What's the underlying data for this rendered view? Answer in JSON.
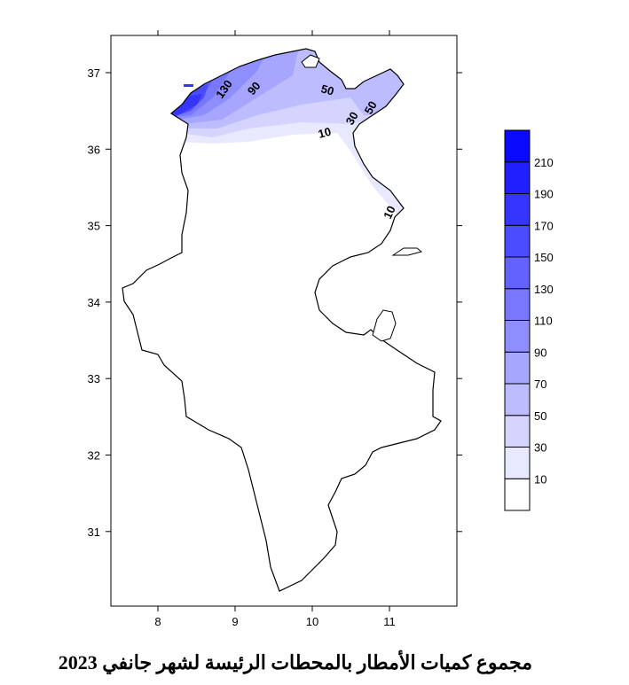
{
  "title": "مجموع كميات الأمطار بالمحطات الرئيسة لشهر جانفي 2023",
  "chart_data": {
    "type": "contour map",
    "region": "Tunisia",
    "xlim": [
      7.4,
      11.9
    ],
    "ylim": [
      30.05,
      37.5
    ],
    "xticks": [
      8,
      9,
      10,
      11
    ],
    "yticks": [
      31,
      32,
      33,
      34,
      35,
      36,
      37
    ],
    "legend": {
      "placement": "right",
      "levels": [
        10,
        30,
        50,
        70,
        90,
        110,
        130,
        150,
        170,
        190,
        210
      ],
      "colors": [
        "#ffffff",
        "#e8e8ff",
        "#d4d4ff",
        "#bcbcff",
        "#a6a6ff",
        "#8e8eff",
        "#7878ff",
        "#6262ff",
        "#4b4bff",
        "#3535ff",
        "#1f1fff",
        "#0a0aff"
      ]
    },
    "contour_labels": [
      "130",
      "90",
      "50",
      "50",
      "30",
      "10",
      "10"
    ]
  }
}
